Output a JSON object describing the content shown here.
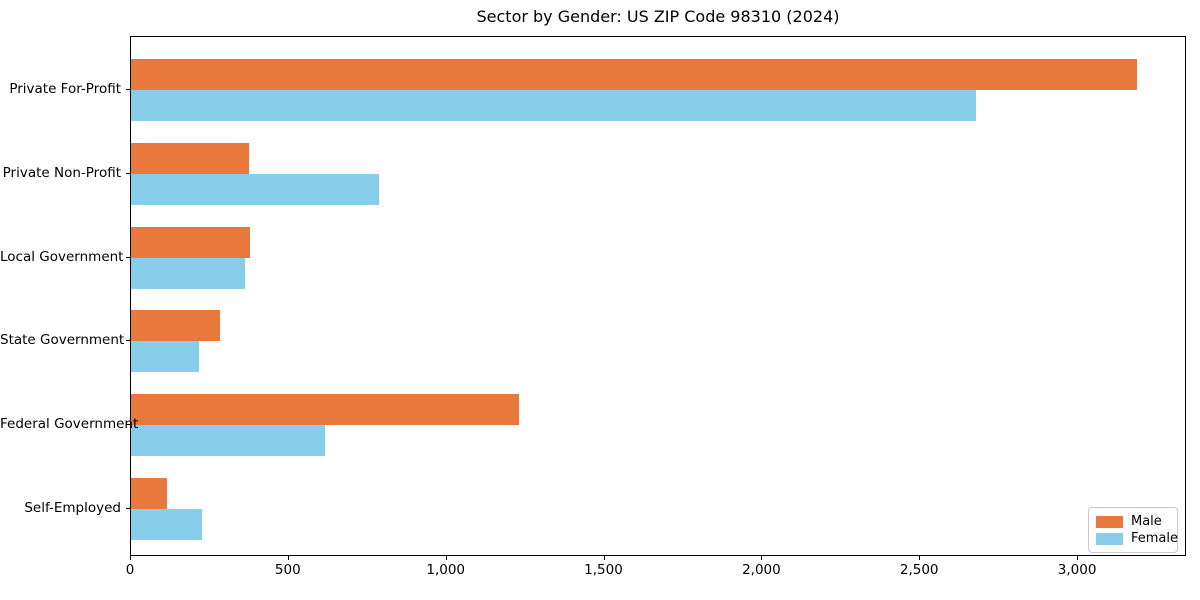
{
  "chart_data": {
    "type": "bar",
    "orientation": "horizontal",
    "title": "Sector by Gender: US ZIP Code 98310 (2024)",
    "xlabel": "",
    "ylabel": "",
    "categories": [
      "Private For-Profit",
      "Private Non-Profit",
      "Local Government",
      "State Government",
      "Federal Government",
      "Self-Employed"
    ],
    "series": [
      {
        "name": "Male",
        "color": "#e8783c",
        "values": [
          3185,
          373,
          376,
          282,
          1230,
          115
        ]
      },
      {
        "name": "Female",
        "color": "#87ceeb",
        "values": [
          2675,
          785,
          361,
          216,
          615,
          225
        ]
      }
    ],
    "xlim": [
      0,
      3345
    ],
    "x_ticks": [
      {
        "value": 0,
        "label": "0"
      },
      {
        "value": 500,
        "label": "500"
      },
      {
        "value": 1000,
        "label": "1,000"
      },
      {
        "value": 1500,
        "label": "1,500"
      },
      {
        "value": 2000,
        "label": "2,000"
      },
      {
        "value": 2500,
        "label": "2,500"
      },
      {
        "value": 3000,
        "label": "3,000"
      }
    ],
    "grid": false,
    "legend": {
      "position": "lower right",
      "entries": [
        "Male",
        "Female"
      ]
    }
  }
}
